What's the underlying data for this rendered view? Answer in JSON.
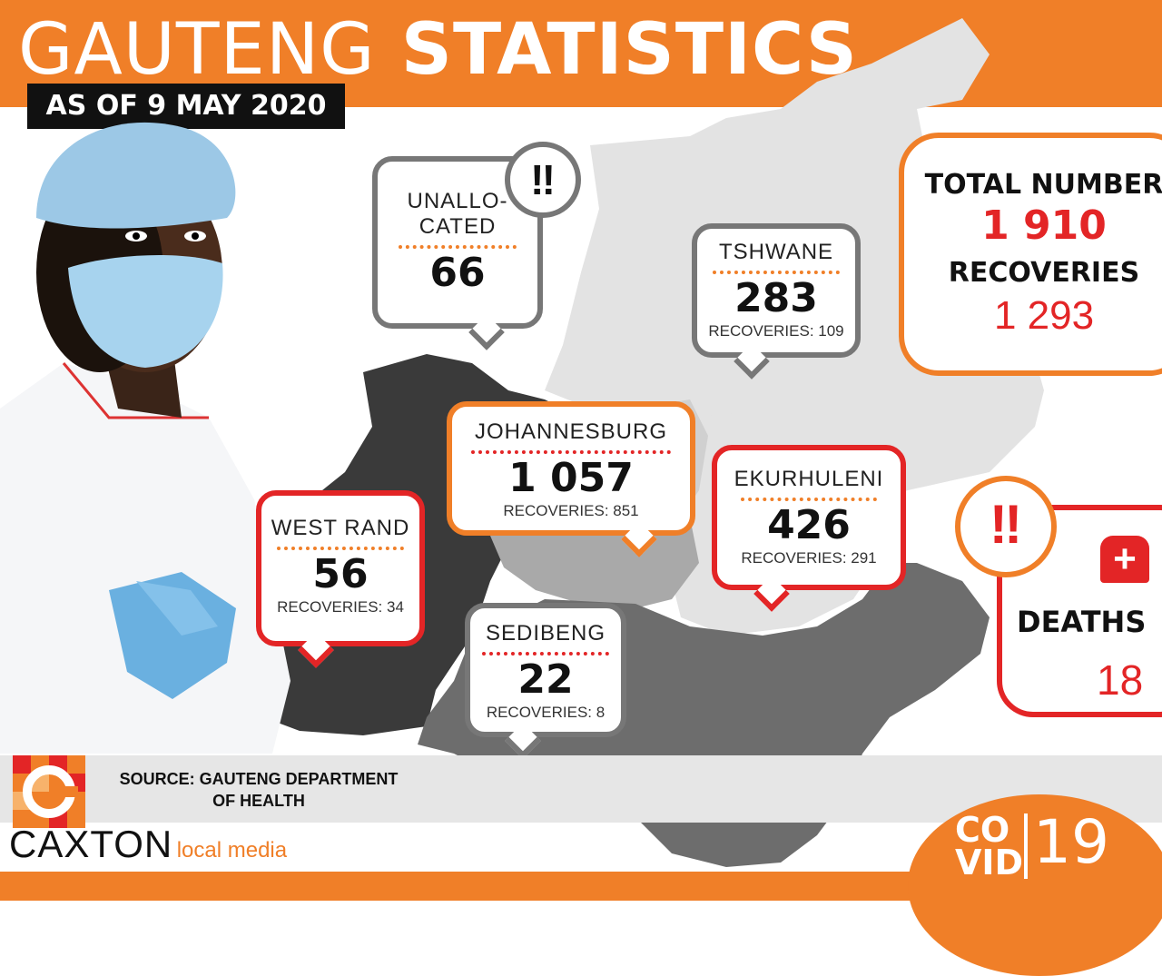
{
  "header": {
    "title_light": "GAUTENG",
    "title_bold": "STATISTICS",
    "date": "AS OF 9 MAY 2020"
  },
  "regions": {
    "unallocated": {
      "name_line1": "UNALLO-",
      "name_line2": "CATED",
      "cases": "66"
    },
    "tshwane": {
      "name": "TSHWANE",
      "cases": "283",
      "recoveries": "RECOVERIES: 109"
    },
    "johannesburg": {
      "name": "JOHANNESBURG",
      "cases": "1 057",
      "recoveries": "RECOVERIES: 851"
    },
    "ekurhuleni": {
      "name": "EKURHULENI",
      "cases": "426",
      "recoveries": "RECOVERIES: 291"
    },
    "west_rand": {
      "name": "WEST RAND",
      "cases": "56",
      "recoveries": "RECOVERIES: 34"
    },
    "sedibeng": {
      "name": "SEDIBENG",
      "cases": "22",
      "recoveries": "RECOVERIES: 8"
    }
  },
  "totals": {
    "total_label": "TOTAL NUMBER",
    "total_value": "1 910",
    "recoveries_label": "RECOVERIES",
    "recoveries_value": "1 293"
  },
  "deaths": {
    "label": "DEATHS",
    "value": "18"
  },
  "source": {
    "line1": "SOURCE: GAUTENG DEPARTMENT",
    "line2": "OF HEALTH"
  },
  "brand": {
    "name": "CAXTON",
    "tagline": "local media"
  },
  "covid": {
    "co": "CO",
    "vid": "VID",
    "nineteen": "19"
  },
  "colors": {
    "orange": "#f07f28",
    "red": "#e32526",
    "dark_grey": "#3a3a3a",
    "mid_grey": "#6d6d6d",
    "light_grey": "#e0e0e0",
    "black": "#111111"
  }
}
